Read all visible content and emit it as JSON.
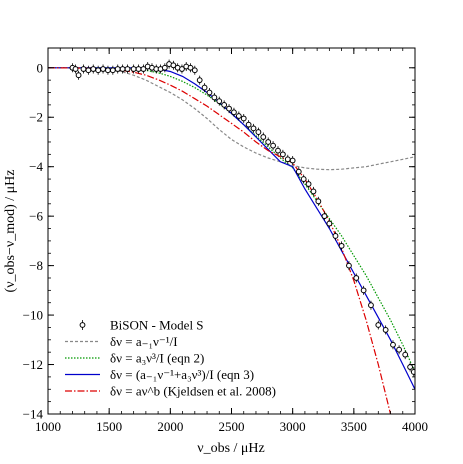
{
  "chart_data": {
    "type": "line",
    "xlabel": "ν_obs / μHz",
    "ylabel": "(ν_obs−ν_mod) / μHz",
    "xlim": [
      1000,
      4000
    ],
    "ylim": [
      -14,
      0.8
    ],
    "x_ticks": [
      1000,
      1500,
      2000,
      2500,
      3000,
      3500,
      4000
    ],
    "y_ticks": [
      0,
      -2,
      -4,
      -6,
      -8,
      -10,
      -12,
      -14
    ],
    "grid": false,
    "legend_position": "bottom-left",
    "legend": [
      {
        "key": "bison",
        "label": "BiSON - Model S"
      },
      {
        "key": "a1",
        "label": "δν = a₋₁ν⁻¹/I"
      },
      {
        "key": "a3",
        "label": "δν = a₃ν³/I (eqn 2)"
      },
      {
        "key": "combined",
        "label": "δν = (a₋₁ν⁻¹+a₃ν³)/I (eqn 3)"
      },
      {
        "key": "power",
        "label": "δν = aν^b (Kjeldsen et al. 2008)"
      }
    ],
    "series": [
      {
        "key": "bison",
        "type": "scatter",
        "color": "#000000",
        "x": [
          1200,
          1225,
          1250,
          1290,
          1330,
          1370,
          1410,
          1450,
          1490,
          1530,
          1570,
          1610,
          1650,
          1700,
          1740,
          1780,
          1815,
          1850,
          1885,
          1920,
          1955,
          1990,
          2025,
          2060,
          2095,
          2130,
          2165,
          2200,
          2240,
          2280,
          2320,
          2360,
          2400,
          2440,
          2480,
          2520,
          2560,
          2600,
          2640,
          2680,
          2720,
          2760,
          2800,
          2840,
          2880,
          2920,
          2960,
          3000,
          3050,
          3090,
          3130,
          3170,
          3210,
          3260,
          3300,
          3350,
          3400,
          3460,
          3520,
          3580,
          3640,
          3700,
          3760,
          3820,
          3870,
          3920,
          3960,
          3990
        ],
        "y": [
          0.0,
          -0.05,
          -0.3,
          -0.05,
          -0.1,
          -0.05,
          -0.1,
          -0.05,
          -0.1,
          -0.1,
          -0.05,
          -0.05,
          -0.05,
          -0.05,
          -0.05,
          -0.05,
          0.05,
          0.0,
          -0.05,
          -0.05,
          0.0,
          0.15,
          0.1,
          0.0,
          -0.05,
          0.05,
          0.0,
          -0.1,
          -0.5,
          -0.8,
          -1.0,
          -1.2,
          -1.35,
          -1.5,
          -1.65,
          -1.8,
          -1.95,
          -2.05,
          -2.3,
          -2.45,
          -2.6,
          -2.8,
          -3.0,
          -3.15,
          -3.35,
          -3.5,
          -3.7,
          -3.75,
          -4.2,
          -4.5,
          -4.7,
          -5.0,
          -5.4,
          -6.0,
          -6.3,
          -6.8,
          -7.2,
          -8.0,
          -8.5,
          -9.0,
          -9.6,
          -10.4,
          -10.6,
          -11.2,
          -11.4,
          -11.6,
          -12.1,
          -12.3
        ]
      },
      {
        "key": "a1",
        "type": "line",
        "color": "#888888",
        "x": [
          1000,
          1200,
          1400,
          1500,
          1600,
          1700,
          1800,
          1900,
          2000,
          2100,
          2200,
          2300,
          2400,
          2500,
          2600,
          2700,
          2800,
          2900,
          3000,
          3100,
          3200,
          3300,
          3400,
          3500,
          3600,
          3700,
          3800,
          3900,
          4000
        ],
        "y": [
          0.0,
          0.0,
          0.0,
          -0.05,
          -0.15,
          -0.3,
          -0.5,
          -0.75,
          -1.0,
          -1.3,
          -1.65,
          -2.05,
          -2.5,
          -2.9,
          -3.2,
          -3.45,
          -3.65,
          -3.8,
          -3.95,
          -4.05,
          -4.1,
          -4.12,
          -4.1,
          -4.05,
          -4.0,
          -3.9,
          -3.8,
          -3.7,
          -3.6
        ]
      },
      {
        "key": "a3",
        "type": "line",
        "color": "#009900",
        "x": [
          1000,
          1200,
          1400,
          1500,
          1600,
          1700,
          1800,
          1900,
          2000,
          2100,
          2200,
          2300,
          2400,
          2500,
          2600,
          2700,
          2800,
          2900,
          3000,
          3100,
          3200,
          3300,
          3400,
          3500,
          3600,
          3700,
          3800,
          3900,
          4000
        ],
        "y": [
          0.0,
          0.0,
          0.0,
          0.0,
          -0.02,
          -0.05,
          -0.1,
          -0.2,
          -0.35,
          -0.55,
          -0.8,
          -1.1,
          -1.45,
          -1.85,
          -2.3,
          -2.75,
          -3.2,
          -3.65,
          -4.05,
          -4.7,
          -5.4,
          -6.1,
          -6.8,
          -7.6,
          -8.4,
          -9.3,
          -10.2,
          -11.2,
          -12.3
        ]
      },
      {
        "key": "combined",
        "type": "line",
        "color": "#0000cc",
        "x": [
          1000,
          1200,
          1400,
          1500,
          1600,
          1700,
          1800,
          1900,
          2000,
          2100,
          2200,
          2300,
          2400,
          2500,
          2600,
          2700,
          2800,
          2900,
          3000,
          3100,
          3200,
          3300,
          3400,
          3500,
          3600,
          3700,
          3800,
          3900,
          4000
        ],
        "y": [
          0.0,
          0.0,
          0.0,
          0.0,
          0.0,
          0.0,
          0.0,
          -0.05,
          -0.15,
          -0.35,
          -0.65,
          -1.0,
          -1.4,
          -1.85,
          -2.3,
          -2.8,
          -3.3,
          -3.8,
          -4.0,
          -4.9,
          -5.7,
          -6.5,
          -7.4,
          -8.3,
          -9.2,
          -10.1,
          -11.0,
          -12.0,
          -13.0
        ]
      },
      {
        "key": "power",
        "type": "line",
        "color": "#dd0000",
        "x": [
          1000,
          1200,
          1400,
          1500,
          1600,
          1700,
          1800,
          1900,
          2000,
          2100,
          2200,
          2300,
          2400,
          2500,
          2600,
          2700,
          2800,
          2900,
          3000,
          3100,
          3200,
          3300,
          3400,
          3500,
          3600,
          3700,
          3800
        ],
        "y": [
          0.0,
          -0.01,
          -0.03,
          -0.05,
          -0.1,
          -0.18,
          -0.3,
          -0.48,
          -0.7,
          -0.95,
          -1.25,
          -1.55,
          -1.9,
          -2.25,
          -2.6,
          -3.0,
          -3.35,
          -3.6,
          -3.85,
          -4.5,
          -5.3,
          -6.2,
          -7.3,
          -8.6,
          -10.2,
          -12.0,
          -14.0
        ]
      }
    ]
  }
}
